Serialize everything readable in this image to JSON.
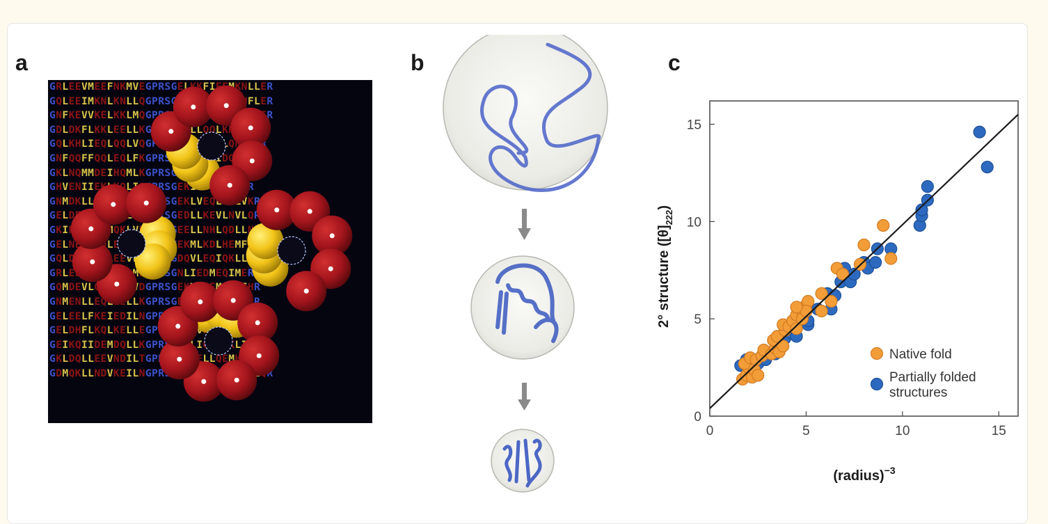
{
  "figure": {
    "panels": [
      {
        "id": "a",
        "label": "a",
        "description": "Sequence alignment grid with space-filling molecular model overlay"
      },
      {
        "id": "b",
        "label": "b",
        "description": "Compaction of chain: unfolded coil -> partially folded -> native fold",
        "stages": [
          "unfolded",
          "partially-folded",
          "native"
        ]
      },
      {
        "id": "c",
        "label": "c"
      }
    ],
    "sequence_rows": [
      "GRLEEVMEEFNKMVEGPRSGELKKFIEEMKNLLER",
      "GQLEEIMKNLKNLLQGPRSGDIENLIKKMQNFLER",
      "GNFKEVVKELKKLMQGPRSGEVKQFMKNFQKMFER",
      "GDLDKFLKKLEELLKGPRSGDNLLQQLKNLIKR",
      "GQLKHLIEQLQQLVQGPRSGEDNLVEQLQNILHR",
      "GNFQQFFQQLEQLFKGPRSGEDFLKNIDQIINR",
      "GKLNQMMDEIHQMLKGPRSGEMLMHHFNQVLER",
      "GHVENIIEKLKQLIQGPRSGEKIEEIEHVVQR",
      "GNMDKLLEQMKEIIDGPRSGEKLVEQLEKLVKR",
      "GELDEMMKHLEDLLNGPRSGEDLLKEVLNVLQR",
      "GKIHEFFEKMQKLVEGPRSGEELLNHLQDLLNR",
      "GELNEIMDQLEKLLNGPRSGEKMLKDLHEMFER",
      "GQLDEIIKKLEEVLDGPRSGDQVLEQIQKLLER",
      "GRLEELMKKIEQLMEGPRSGNLIEDMEQIMER",
      "GQMDEVLQEMKKLVDGPRSGEKVFEEMQNLIHR",
      "GNMENLLEQLEELLKGPRSGEEIVHDFDKMLNR",
      "GELEELFKEIEDILNGPRSGEEILQEIEDLFNR",
      "GELDHFLKQLKELLEGPRSGEEIVHHIQHLFQR",
      "GEIKQIIDEMDQLLKGPRSGEELIQNFEKLIHR",
      "GKLDQLLEEVNDILTGPRSGQLEELLQEMHHLVQR",
      "GDMQKLLNDVKEILNGPRSGDFQNLLNQIHNVLQR"
    ]
  },
  "chart_data": {
    "type": "scatter",
    "title": "",
    "xlabel": "(radius)",
    "xlabel_superscript": "−3",
    "ylabel_prefix": "2° structure ([θ]",
    "ylabel_subscript": "222",
    "ylabel_suffix": ")",
    "xlim": [
      0,
      16
    ],
    "ylim": [
      0,
      16.2
    ],
    "xticks": [
      0,
      5,
      10,
      15
    ],
    "yticks": [
      0,
      5,
      10,
      15
    ],
    "grid": false,
    "legend_position": "lower-right",
    "fit_line": {
      "x": [
        0,
        16
      ],
      "y": [
        0.4,
        15.5
      ],
      "color": "#1a1a1a"
    },
    "series": [
      {
        "name": "Native fold",
        "color": "#f29d38",
        "edge": "#d27a22",
        "points": [
          [
            1.7,
            1.9
          ],
          [
            1.9,
            2.1
          ],
          [
            2.0,
            2.5
          ],
          [
            2.2,
            2.0
          ],
          [
            2.3,
            2.4
          ],
          [
            2.5,
            2.1
          ],
          [
            1.8,
            2.7
          ],
          [
            2.1,
            3.0
          ],
          [
            2.4,
            2.9
          ],
          [
            2.7,
            3.1
          ],
          [
            2.8,
            3.4
          ],
          [
            3.2,
            3.2
          ],
          [
            3.4,
            3.5
          ],
          [
            3.6,
            3.3
          ],
          [
            3.8,
            3.6
          ],
          [
            3.3,
            3.9
          ],
          [
            3.5,
            4.1
          ],
          [
            3.9,
            4.4
          ],
          [
            3.8,
            4.7
          ],
          [
            4.1,
            4.6
          ],
          [
            4.3,
            4.9
          ],
          [
            4.5,
            4.5
          ],
          [
            4.5,
            5.2
          ],
          [
            4.7,
            5.5
          ],
          [
            4.8,
            5.0
          ],
          [
            5.0,
            5.7
          ],
          [
            5.1,
            5.9
          ],
          [
            5.0,
            5.4
          ],
          [
            4.5,
            5.6
          ],
          [
            5.8,
            6.3
          ],
          [
            5.8,
            5.4
          ],
          [
            6.3,
            5.9
          ],
          [
            6.6,
            7.6
          ],
          [
            6.9,
            7.3
          ],
          [
            7.8,
            7.8
          ],
          [
            8.0,
            8.8
          ],
          [
            9.0,
            9.8
          ],
          [
            9.4,
            8.1
          ]
        ]
      },
      {
        "name": "Partially folded structures",
        "color": "#2d6abf",
        "edge": "#1d4e96",
        "points": [
          [
            1.6,
            2.6
          ],
          [
            1.9,
            2.9
          ],
          [
            2.5,
            2.7
          ],
          [
            2.9,
            2.9
          ],
          [
            3.4,
            3.2
          ],
          [
            3.7,
            3.6
          ],
          [
            3.9,
            4.0
          ],
          [
            4.2,
            4.3
          ],
          [
            4.5,
            4.1
          ],
          [
            5.1,
            4.7
          ],
          [
            5.1,
            4.9
          ],
          [
            5.6,
            5.5
          ],
          [
            6.1,
            6.3
          ],
          [
            6.3,
            5.5
          ],
          [
            6.5,
            6.2
          ],
          [
            6.8,
            6.9
          ],
          [
            7.0,
            7.6
          ],
          [
            7.3,
            6.9
          ],
          [
            7.5,
            7.3
          ],
          [
            8.0,
            7.9
          ],
          [
            8.2,
            7.6
          ],
          [
            8.6,
            7.9
          ],
          [
            8.7,
            8.6
          ],
          [
            9.4,
            8.6
          ],
          [
            10.9,
            9.8
          ],
          [
            11.0,
            10.3
          ],
          [
            11.0,
            10.6
          ],
          [
            11.3,
            11.1
          ],
          [
            11.3,
            11.8
          ],
          [
            14.0,
            14.6
          ],
          [
            14.4,
            12.8
          ]
        ]
      }
    ]
  },
  "colors": {
    "background": "#fefaed",
    "card": "#ffffff",
    "ribbon": "#4a62c8",
    "sphere_red": "#a3141c",
    "sphere_yellow": "#f2c418",
    "arrow": "#8a8a8a"
  }
}
